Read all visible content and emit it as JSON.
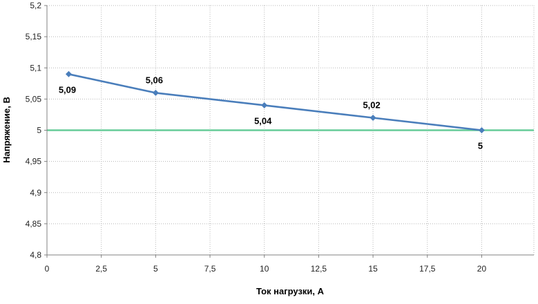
{
  "chart_data": {
    "type": "line",
    "title": "",
    "xlabel": "Ток нагрузки, А",
    "ylabel": "Напряжение, В",
    "xlim": [
      0,
      22.4
    ],
    "ylim": [
      4.8,
      5.2
    ],
    "x_ticks": [
      0,
      2.5,
      5,
      7.5,
      10,
      12.5,
      15,
      17.5,
      20
    ],
    "x_tick_labels": [
      "0",
      "2,5",
      "5",
      "7,5",
      "10",
      "12,5",
      "15",
      "17,5",
      "20"
    ],
    "y_ticks": [
      4.8,
      4.85,
      4.9,
      4.95,
      5.0,
      5.05,
      5.1,
      5.15,
      5.2
    ],
    "y_tick_labels": [
      "4,8",
      "4,85",
      "4,9",
      "4,95",
      "5",
      "5,05",
      "5,1",
      "5,15",
      "5,2"
    ],
    "grid": true,
    "legend": "none",
    "series": [
      {
        "x": [
          1,
          5,
          10,
          15,
          20
        ],
        "y": [
          5.09,
          5.06,
          5.04,
          5.02,
          5.0
        ],
        "data_labels": [
          "5,09",
          "5,06",
          "5,04",
          "5,02",
          "5"
        ],
        "label_positions": [
          "below",
          "above",
          "below",
          "above",
          "below"
        ],
        "color": "#4a7ebb",
        "marker": "diamond"
      }
    ],
    "reference_lines": [
      {
        "axis": "y",
        "value": 5.0,
        "color": "#66cc99"
      }
    ]
  },
  "colors": {
    "plot_background": "#ffffff",
    "grid": "#b5b5b5",
    "axis": "#808080"
  }
}
